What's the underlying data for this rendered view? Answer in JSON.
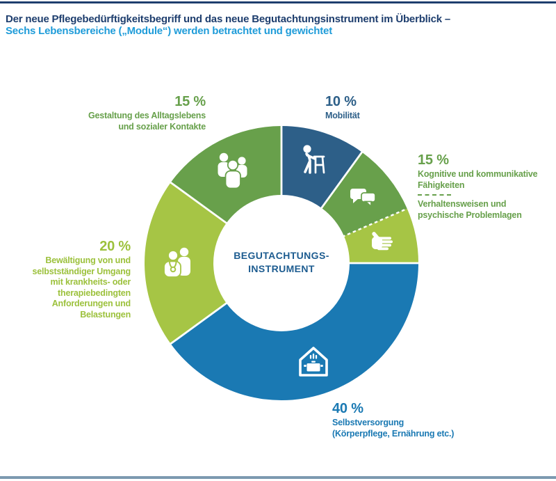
{
  "header": {
    "title_line1": "Der neue Pflegebedürftigkeitsbegriff und das neue Begutachtungsinstrument im Überblick –",
    "title_line2": "Sechs Lebensbereiche („Module“) werden betrachtet und gewichtet"
  },
  "colors": {
    "title_dark": "#1e3e6e",
    "title_light": "#1f9cd9",
    "rule_top": "#1e3e6e",
    "rule_bottom": "#7d9ab0",
    "text_dark_green": "#67a04b",
    "text_light_green": "#9cc13c",
    "text_dark_blue": "#2d5f88",
    "text_bright_blue": "#1a79b3",
    "center_text": "#1d5c90"
  },
  "chart_data": {
    "type": "donut",
    "start_angle_deg": 0,
    "clockwise": true,
    "unit": "%",
    "center_label": [
      "BEGUTACHTUNGS-",
      "INSTRUMENT"
    ],
    "segments": [
      {
        "id": "mobilitaet",
        "label": "Mobilität",
        "value": 10,
        "color": "#2d5f88",
        "icon": "person-with-walker"
      },
      {
        "id": "kognitive",
        "label": "Kognitive und kommunikative Fähigkeiten",
        "value": 8.5,
        "color": "#68a04b",
        "icon": "speech-bubbles"
      },
      {
        "id": "verhaltensweisen",
        "label": "Verhaltensweisen und psychische Problemlagen",
        "value": 6.5,
        "color": "#a6c545",
        "icon": "open-hand"
      },
      {
        "id": "selbstversorgung",
        "label": "Selbstversorgung (Körperpflege, Ernährung etc.)",
        "value": 40,
        "color": "#1a79b3",
        "icon": "house-with-cooking-pot"
      },
      {
        "id": "bewaeltigung",
        "label": "Bewältigung von und selbstständiger Umgang mit krankheits- oder therapiebedingten Anforderungen und Belastungen",
        "value": 20,
        "color": "#a6c545",
        "icon": "caregiver-with-patient"
      },
      {
        "id": "gestaltung",
        "label": "Gestaltung des Alltagslebens und sozialer Kontakte",
        "value": 15,
        "color": "#68a04b",
        "icon": "group-of-people"
      }
    ],
    "combined_groups": [
      {
        "segments": [
          "kognitive",
          "verhaltensweisen"
        ],
        "display_pct": "15 %"
      }
    ],
    "dashed_boundary_index": 2
  },
  "callouts": {
    "gestaltung": {
      "pct": "15 %",
      "lines": [
        "Gestaltung des Alltagslebens",
        "und sozialer Kontakte"
      ]
    },
    "mobilitaet": {
      "pct": "10 %",
      "lines": [
        "Mobilität"
      ]
    },
    "kognitive": {
      "pct": "15 %",
      "lines": [
        "Kognitive und kommunikative",
        "Fähigkeiten"
      ],
      "lines2": [
        "Verhaltensweisen und",
        "psychische Problemlagen"
      ]
    },
    "bewaeltigung": {
      "pct": "20 %",
      "lines": [
        "Bewältigung von und",
        "selbstständiger Umgang",
        "mit krankheits- oder",
        "therapiebedingten",
        "Anforderungen und",
        "Belastungen"
      ]
    },
    "selbstversorgung": {
      "pct": "40 %",
      "lines": [
        "Selbstversorgung",
        "(Körperpflege, Ernährung etc.)"
      ]
    }
  }
}
